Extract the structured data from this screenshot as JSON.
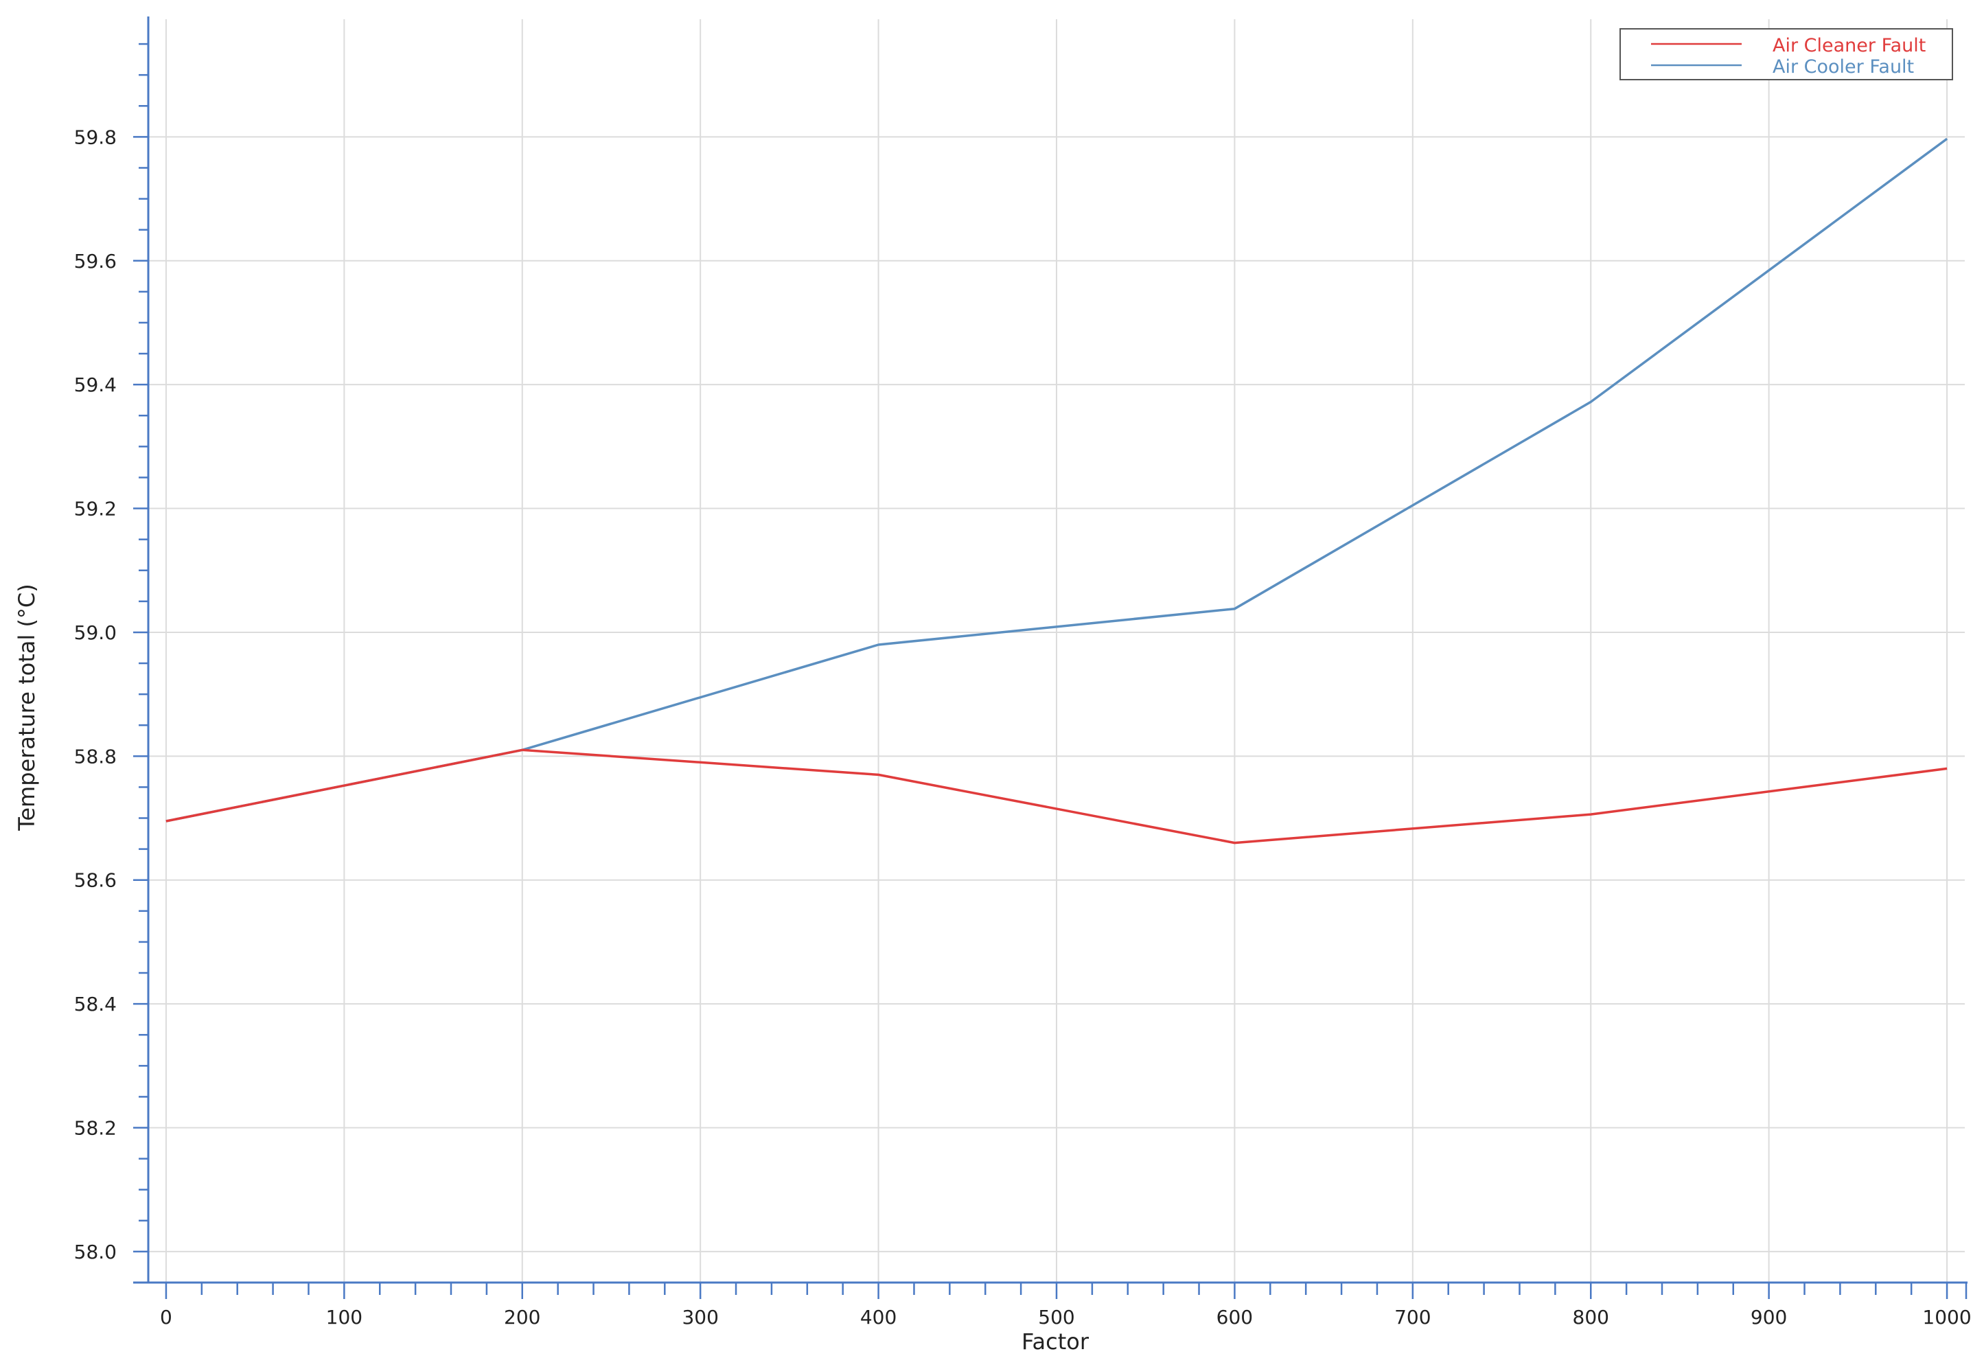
{
  "chart_data": {
    "type": "line",
    "title": "",
    "xlabel": "Factor",
    "ylabel": "Temperature total (°C)",
    "xlim": [
      -10,
      1010
    ],
    "ylim": [
      57.95,
      59.99
    ],
    "x_ticks": [
      "0",
      "100",
      "200",
      "300",
      "400",
      "500",
      "600",
      "700",
      "800",
      "900",
      "1000"
    ],
    "y_ticks": [
      "58.0",
      "58.2",
      "58.4",
      "58.6",
      "58.8",
      "59.0",
      "59.2",
      "59.4",
      "59.6",
      "59.8"
    ],
    "grid": true,
    "legend_position": "top-right",
    "series": [
      {
        "name": "Air Cleaner Fault",
        "color": "#e03c3c",
        "x": [
          0,
          200,
          400,
          600,
          800,
          1000
        ],
        "y": [
          58.695,
          58.81,
          58.77,
          58.66,
          58.706,
          58.78
        ]
      },
      {
        "name": "Air Cooler Fault",
        "color": "#5b8fc0",
        "x": [
          0,
          200,
          400,
          600,
          800,
          1000
        ],
        "y": [
          58.695,
          58.81,
          58.98,
          59.038,
          59.372,
          59.797
        ]
      }
    ]
  }
}
